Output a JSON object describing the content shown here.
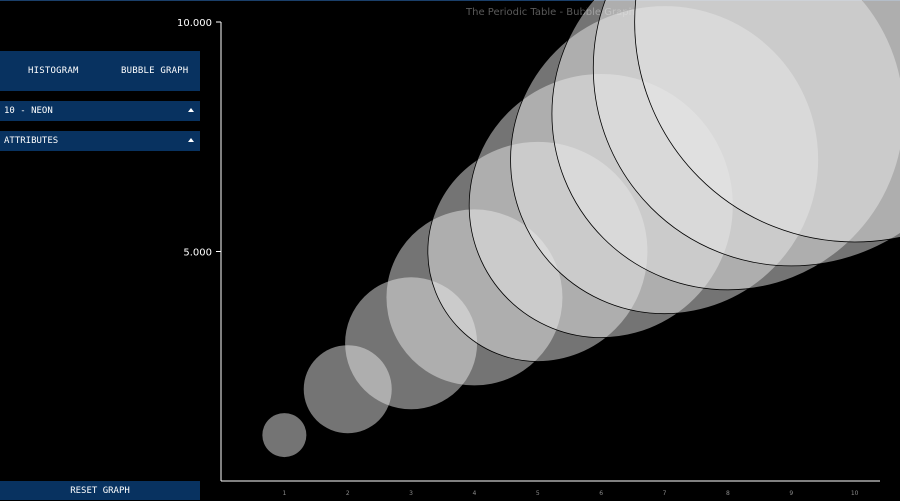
{
  "app": {
    "chart_title": "The Periodic Table - Bubble Graph"
  },
  "sidebar": {
    "tabs": [
      "HISTOGRAM",
      "BUBBLE GRAPH"
    ],
    "element_select": "10 - NEON",
    "attributes_select": "ATTRIBUTES",
    "reset_label": "RESET GRAPH"
  },
  "colors": {
    "panel": "#083260",
    "background": "#000000",
    "bubble_fill": "#e8e8e8",
    "axis": "#ffffff"
  },
  "chart_data": {
    "type": "scatter",
    "title": "The Periodic Table - Bubble Graph",
    "xlabel": "",
    "ylabel": "",
    "x_ticks": [
      1,
      2,
      3,
      4,
      5,
      6,
      7,
      8,
      9,
      10
    ],
    "y_ticks": [
      "5.000",
      "10.000"
    ],
    "ylim": [
      0,
      10
    ],
    "xlim": [
      0,
      10.4
    ],
    "series": [
      {
        "x": [
          1,
          2,
          3,
          4,
          5,
          6,
          7,
          8,
          9,
          10
        ],
        "y": [
          1,
          2,
          3,
          4,
          5,
          6,
          7,
          8,
          9,
          10
        ],
        "size": [
          1,
          2,
          3,
          4,
          5,
          6,
          7,
          8,
          9,
          10
        ]
      }
    ],
    "grid": false
  }
}
